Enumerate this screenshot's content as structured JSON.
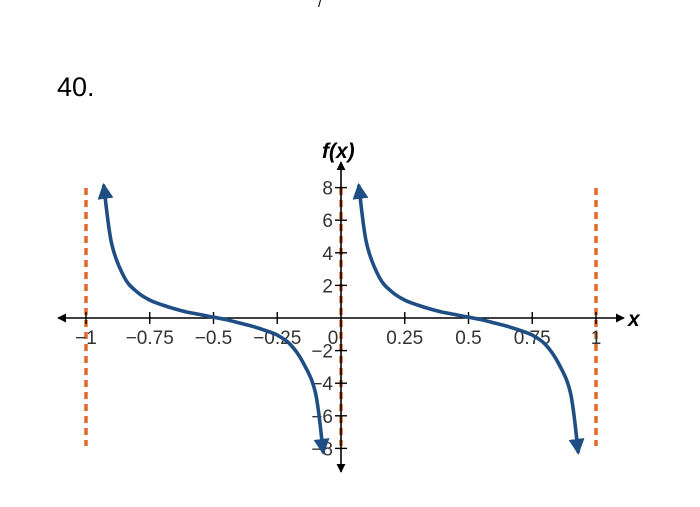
{
  "problem": {
    "number": "40.",
    "top_mark": "/"
  },
  "chart_data": {
    "type": "line",
    "title": "",
    "xlabel": "x",
    "ylabel": "f(x)",
    "xlim": [
      -1.05,
      1.07
    ],
    "ylim": [
      -9,
      9
    ],
    "x_ticks": [
      {
        "value": -1,
        "label": "−1"
      },
      {
        "value": -0.75,
        "label": "−0.75"
      },
      {
        "value": -0.5,
        "label": "−0.5"
      },
      {
        "value": -0.25,
        "label": "−0.25"
      },
      {
        "value": 0,
        "label": "0"
      },
      {
        "value": 0.25,
        "label": "0.25"
      },
      {
        "value": 0.5,
        "label": "0.5"
      },
      {
        "value": 0.75,
        "label": "0.75"
      },
      {
        "value": 1,
        "label": "1"
      }
    ],
    "y_ticks": [
      {
        "value": 8,
        "label": "8"
      },
      {
        "value": 6,
        "label": "6"
      },
      {
        "value": 4,
        "label": "4"
      },
      {
        "value": 2,
        "label": "2"
      },
      {
        "value": -2,
        "label": "−2"
      },
      {
        "value": -4,
        "label": "−4"
      },
      {
        "value": -6,
        "label": "−6"
      },
      {
        "value": -8,
        "label": "−8"
      }
    ],
    "asymptotes": [
      -1,
      0,
      1
    ],
    "grid": false,
    "colors": {
      "curve": "#1f4e84",
      "asymptote": "#e06a2c",
      "axis": "#000000"
    },
    "branches": [
      {
        "x_start": -0.93,
        "x_end": -0.07,
        "points": [
          [
            -0.93,
            8.1
          ],
          [
            -0.9,
            4.6
          ],
          [
            -0.85,
            2.5
          ],
          [
            -0.8,
            1.6
          ],
          [
            -0.75,
            1.1
          ],
          [
            -0.7,
            0.8
          ],
          [
            -0.65,
            0.55
          ],
          [
            -0.6,
            0.35
          ],
          [
            -0.55,
            0.2
          ],
          [
            -0.5,
            0.05
          ],
          [
            -0.45,
            -0.1
          ],
          [
            -0.4,
            -0.3
          ],
          [
            -0.35,
            -0.5
          ],
          [
            -0.3,
            -0.75
          ],
          [
            -0.25,
            -1.05
          ],
          [
            -0.2,
            -1.6
          ],
          [
            -0.15,
            -2.7
          ],
          [
            -0.1,
            -4.6
          ],
          [
            -0.07,
            -8.2
          ]
        ]
      },
      {
        "x_start": 0.07,
        "x_end": 0.93,
        "points": [
          [
            0.07,
            8.1
          ],
          [
            0.1,
            4.6
          ],
          [
            0.15,
            2.5
          ],
          [
            0.2,
            1.6
          ],
          [
            0.25,
            1.1
          ],
          [
            0.3,
            0.8
          ],
          [
            0.35,
            0.55
          ],
          [
            0.4,
            0.35
          ],
          [
            0.45,
            0.2
          ],
          [
            0.5,
            0.05
          ],
          [
            0.55,
            -0.1
          ],
          [
            0.6,
            -0.3
          ],
          [
            0.65,
            -0.5
          ],
          [
            0.7,
            -0.75
          ],
          [
            0.75,
            -1.05
          ],
          [
            0.8,
            -1.6
          ],
          [
            0.85,
            -2.7
          ],
          [
            0.9,
            -4.6
          ],
          [
            0.93,
            -8.2
          ]
        ]
      }
    ]
  }
}
